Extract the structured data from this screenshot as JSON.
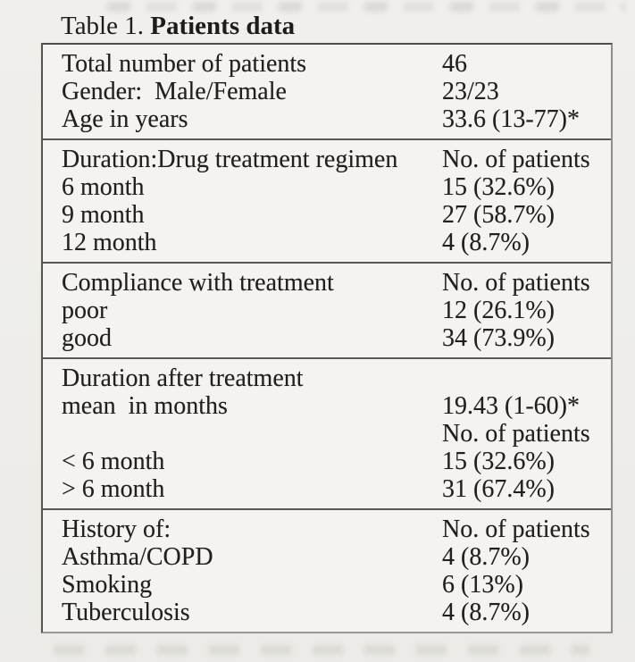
{
  "title": {
    "prefix": "Table 1. ",
    "emphasis": "Patients data"
  },
  "colors": {
    "paper": "#efeeea",
    "table_background": "#f4f3f0",
    "text": "#21201e",
    "border_dark": "#4e4d49",
    "border_light": "#9a9995",
    "divider": "#5a5955"
  },
  "table": {
    "sections": [
      {
        "rows": [
          {
            "label": "Total number of patients",
            "value": "46"
          },
          {
            "label": "Gender:  Male/Female",
            "value": "23/23"
          },
          {
            "label": "Age in years",
            "value": "33.6 (13-77)*"
          }
        ]
      },
      {
        "rows": [
          {
            "label": "Duration:Drug treatment regimen",
            "value": "No. of patients"
          },
          {
            "label": "6 month",
            "value": "15 (32.6%)"
          },
          {
            "label": "9 month",
            "value": "27 (58.7%)"
          },
          {
            "label": "12 month",
            "value": "4 (8.7%)"
          }
        ]
      },
      {
        "rows": [
          {
            "label": "Compliance with treatment",
            "value": "No. of patients"
          },
          {
            "label": "poor",
            "value": "12 (26.1%)"
          },
          {
            "label": "good",
            "value": "34 (73.9%)"
          }
        ]
      },
      {
        "rows": [
          {
            "label": "Duration after treatment",
            "value": ""
          },
          {
            "label": "mean  in months",
            "value": "19.43 (1-60)*"
          },
          {
            "label": "",
            "value": "No. of patients"
          },
          {
            "label": "< 6 month",
            "value": "15 (32.6%)"
          },
          {
            "label": "> 6 month",
            "value": "31 (67.4%)"
          }
        ]
      },
      {
        "rows": [
          {
            "label": "History of:",
            "value": "No. of patients"
          },
          {
            "label": "Asthma/COPD",
            "value": "4 (8.7%)"
          },
          {
            "label": "Smoking",
            "value": "6 (13%)"
          },
          {
            "label": "Tuberculosis",
            "value": "4 (8.7%)"
          }
        ]
      }
    ]
  }
}
